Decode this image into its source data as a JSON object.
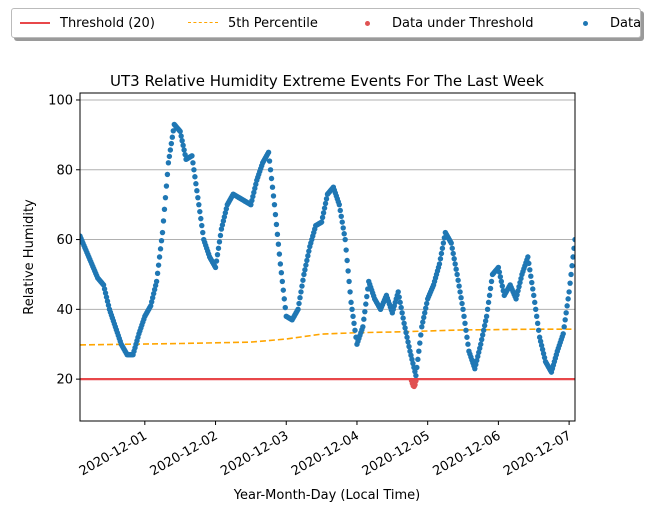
{
  "chart_data": {
    "type": "scatter",
    "title": "UT3 Relative Humidity Extreme Events For The Last Week",
    "xlabel": "Year-Month-Day (Local Time)",
    "ylabel": "Relative Humidity",
    "xlim": [
      "2020-11-30 02:00",
      "2020-12-07 02:00"
    ],
    "ylim": [
      8,
      102
    ],
    "x_ticks": [
      "2020-12-01",
      "2020-12-02",
      "2020-12-03",
      "2020-12-04",
      "2020-12-05",
      "2020-12-06",
      "2020-12-07"
    ],
    "y_ticks": [
      20,
      40,
      60,
      80,
      100
    ],
    "grid": "horizontal",
    "legend_position": "top, above plot",
    "series": [
      {
        "name": "Threshold (20)",
        "kind": "line",
        "style": "solid",
        "color": "#e8474a",
        "points": [
          [
            "2020-11-30 02:00",
            20
          ],
          [
            "2020-12-07 02:00",
            20
          ]
        ]
      },
      {
        "name": "5th Percentile",
        "kind": "line",
        "style": "dashed",
        "color": "#ffa500",
        "points": [
          [
            "2020-11-30 02:00",
            29.8
          ],
          [
            "2020-12-01 12:00",
            30.2
          ],
          [
            "2020-12-02 12:00",
            30.6
          ],
          [
            "2020-12-03 00:00",
            31.5
          ],
          [
            "2020-12-03 12:00",
            32.9
          ],
          [
            "2020-12-04 00:00",
            33.3
          ],
          [
            "2020-12-04 12:00",
            33.5
          ],
          [
            "2020-12-05 00:00",
            33.8
          ],
          [
            "2020-12-05 12:00",
            34.1
          ],
          [
            "2020-12-06 00:00",
            34.2
          ],
          [
            "2020-12-06 12:00",
            34.3
          ],
          [
            "2020-12-07 02:00",
            34.3
          ]
        ]
      },
      {
        "name": "Data under Threshold",
        "kind": "scatter",
        "color": "#e05252",
        "points": [
          [
            "2020-12-04 18:30",
            19.6
          ],
          [
            "2020-12-04 18:48",
            18.8
          ],
          [
            "2020-12-04 19:06",
            18.1
          ],
          [
            "2020-12-04 19:24",
            17.9
          ],
          [
            "2020-12-04 19:42",
            18.4
          ],
          [
            "2020-12-04 20:00",
            19.5
          ]
        ]
      },
      {
        "name": "Data",
        "kind": "scatter",
        "color": "#1f77b4",
        "points": [
          [
            "2020-11-30 02:00",
            61
          ],
          [
            "2020-11-30 04:00",
            57
          ],
          [
            "2020-11-30 06:00",
            53
          ],
          [
            "2020-11-30 08:00",
            49
          ],
          [
            "2020-11-30 10:00",
            47
          ],
          [
            "2020-11-30 12:00",
            40
          ],
          [
            "2020-11-30 14:00",
            35
          ],
          [
            "2020-11-30 16:00",
            30
          ],
          [
            "2020-11-30 18:00",
            27
          ],
          [
            "2020-11-30 20:00",
            27
          ],
          [
            "2020-11-30 22:00",
            33
          ],
          [
            "2020-12-01 00:00",
            38
          ],
          [
            "2020-12-01 02:00",
            41
          ],
          [
            "2020-12-01 04:00",
            48
          ],
          [
            "2020-12-01 06:00",
            62
          ],
          [
            "2020-12-01 08:00",
            82
          ],
          [
            "2020-12-01 10:00",
            93
          ],
          [
            "2020-12-01 12:00",
            91
          ],
          [
            "2020-12-01 14:00",
            83
          ],
          [
            "2020-12-01 16:00",
            84
          ],
          [
            "2020-12-01 18:00",
            72
          ],
          [
            "2020-12-01 20:00",
            60
          ],
          [
            "2020-12-01 22:00",
            55
          ],
          [
            "2020-12-02 00:00",
            52
          ],
          [
            "2020-12-02 02:00",
            63
          ],
          [
            "2020-12-02 04:00",
            70
          ],
          [
            "2020-12-02 06:00",
            73
          ],
          [
            "2020-12-02 08:00",
            72
          ],
          [
            "2020-12-02 10:00",
            71
          ],
          [
            "2020-12-02 12:00",
            70
          ],
          [
            "2020-12-02 14:00",
            77
          ],
          [
            "2020-12-02 16:00",
            82
          ],
          [
            "2020-12-02 18:00",
            85
          ],
          [
            "2020-12-02 20:00",
            70
          ],
          [
            "2020-12-02 22:00",
            53
          ],
          [
            "2020-12-03 00:00",
            38
          ],
          [
            "2020-12-03 02:00",
            37
          ],
          [
            "2020-12-03 04:00",
            40
          ],
          [
            "2020-12-03 06:00",
            50
          ],
          [
            "2020-12-03 08:00",
            58
          ],
          [
            "2020-12-03 10:00",
            64
          ],
          [
            "2020-12-03 12:00",
            65
          ],
          [
            "2020-12-03 14:00",
            73
          ],
          [
            "2020-12-03 16:00",
            75
          ],
          [
            "2020-12-03 18:00",
            70
          ],
          [
            "2020-12-03 20:00",
            60
          ],
          [
            "2020-12-03 22:00",
            42
          ],
          [
            "2020-12-04 00:00",
            30
          ],
          [
            "2020-12-04 02:00",
            35
          ],
          [
            "2020-12-04 04:00",
            48
          ],
          [
            "2020-12-04 06:00",
            43
          ],
          [
            "2020-12-04 08:00",
            40
          ],
          [
            "2020-12-04 10:00",
            44
          ],
          [
            "2020-12-04 12:00",
            39
          ],
          [
            "2020-12-04 14:00",
            45
          ],
          [
            "2020-12-04 16:00",
            36
          ],
          [
            "2020-12-04 18:00",
            28
          ],
          [
            "2020-12-04 20:00",
            21
          ],
          [
            "2020-12-04 22:00",
            35
          ],
          [
            "2020-12-05 00:00",
            43
          ],
          [
            "2020-12-05 02:00",
            47
          ],
          [
            "2020-12-05 04:00",
            53
          ],
          [
            "2020-12-05 06:00",
            62
          ],
          [
            "2020-12-05 08:00",
            59
          ],
          [
            "2020-12-05 10:00",
            50
          ],
          [
            "2020-12-05 12:00",
            40
          ],
          [
            "2020-12-05 14:00",
            28
          ],
          [
            "2020-12-05 16:00",
            23
          ],
          [
            "2020-12-05 18:00",
            30
          ],
          [
            "2020-12-05 20:00",
            38
          ],
          [
            "2020-12-05 22:00",
            50
          ],
          [
            "2020-12-06 00:00",
            52
          ],
          [
            "2020-12-06 02:00",
            44
          ],
          [
            "2020-12-06 04:00",
            47
          ],
          [
            "2020-12-06 06:00",
            43
          ],
          [
            "2020-12-06 08:00",
            50
          ],
          [
            "2020-12-06 10:00",
            55
          ],
          [
            "2020-12-06 12:00",
            44
          ],
          [
            "2020-12-06 14:00",
            32
          ],
          [
            "2020-12-06 16:00",
            25
          ],
          [
            "2020-12-06 18:00",
            22
          ],
          [
            "2020-12-06 20:00",
            28
          ],
          [
            "2020-12-06 22:00",
            33
          ],
          [
            "2020-12-07 00:00",
            45
          ],
          [
            "2020-12-07 02:00",
            60
          ]
        ]
      }
    ]
  }
}
